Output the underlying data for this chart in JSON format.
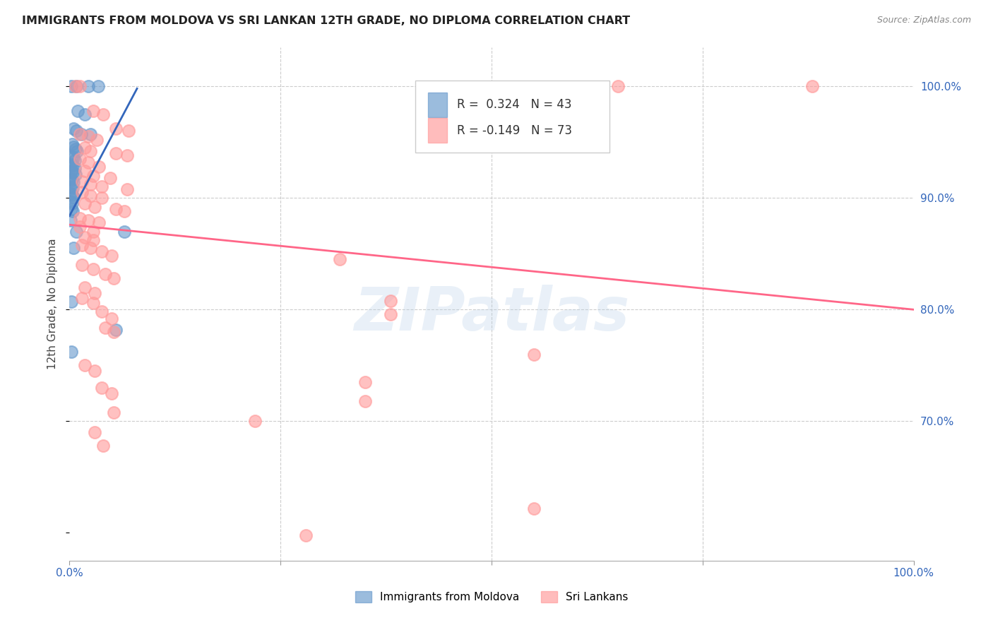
{
  "title": "IMMIGRANTS FROM MOLDOVA VS SRI LANKAN 12TH GRADE, NO DIPLOMA CORRELATION CHART",
  "source": "Source: ZipAtlas.com",
  "ylabel": "12th Grade, No Diploma",
  "y_tick_labels_right": [
    "100.0%",
    "90.0%",
    "80.0%",
    "70.0%"
  ],
  "y_tick_positions_right": [
    1.0,
    0.9,
    0.8,
    0.7
  ],
  "xlim": [
    0.0,
    1.0
  ],
  "ylim": [
    0.575,
    1.035
  ],
  "legend_r_blue": "0.324",
  "legend_n_blue": "43",
  "legend_r_pink": "-0.149",
  "legend_n_pink": "73",
  "blue_color": "#6699CC",
  "pink_color": "#FF9999",
  "blue_line_color": "#3366BB",
  "pink_line_color": "#FF6688",
  "watermark": "ZIPatlas",
  "blue_points": [
    [
      0.002,
      1.0
    ],
    [
      0.008,
      1.0
    ],
    [
      0.022,
      1.0
    ],
    [
      0.034,
      1.0
    ],
    [
      0.01,
      0.978
    ],
    [
      0.018,
      0.975
    ],
    [
      0.005,
      0.962
    ],
    [
      0.008,
      0.96
    ],
    [
      0.014,
      0.957
    ],
    [
      0.025,
      0.957
    ],
    [
      0.003,
      0.948
    ],
    [
      0.005,
      0.946
    ],
    [
      0.007,
      0.944
    ],
    [
      0.009,
      0.942
    ],
    [
      0.003,
      0.937
    ],
    [
      0.005,
      0.936
    ],
    [
      0.006,
      0.934
    ],
    [
      0.002,
      0.93
    ],
    [
      0.004,
      0.929
    ],
    [
      0.006,
      0.927
    ],
    [
      0.002,
      0.924
    ],
    [
      0.004,
      0.923
    ],
    [
      0.007,
      0.921
    ],
    [
      0.002,
      0.917
    ],
    [
      0.003,
      0.916
    ],
    [
      0.005,
      0.914
    ],
    [
      0.002,
      0.91
    ],
    [
      0.004,
      0.909
    ],
    [
      0.001,
      0.904
    ],
    [
      0.003,
      0.903
    ],
    [
      0.005,
      0.901
    ],
    [
      0.001,
      0.897
    ],
    [
      0.003,
      0.895
    ],
    [
      0.002,
      0.89
    ],
    [
      0.004,
      0.888
    ],
    [
      0.001,
      0.88
    ],
    [
      0.008,
      0.87
    ],
    [
      0.065,
      0.87
    ],
    [
      0.005,
      0.855
    ],
    [
      0.002,
      0.807
    ],
    [
      0.055,
      0.782
    ],
    [
      0.002,
      0.762
    ]
  ],
  "pink_points": [
    [
      0.007,
      1.0
    ],
    [
      0.012,
      1.0
    ],
    [
      0.65,
      1.0
    ],
    [
      0.88,
      1.0
    ],
    [
      0.028,
      0.978
    ],
    [
      0.04,
      0.975
    ],
    [
      0.055,
      0.962
    ],
    [
      0.07,
      0.96
    ],
    [
      0.012,
      0.957
    ],
    [
      0.022,
      0.955
    ],
    [
      0.032,
      0.952
    ],
    [
      0.018,
      0.945
    ],
    [
      0.025,
      0.942
    ],
    [
      0.055,
      0.94
    ],
    [
      0.068,
      0.938
    ],
    [
      0.012,
      0.935
    ],
    [
      0.022,
      0.932
    ],
    [
      0.035,
      0.928
    ],
    [
      0.018,
      0.924
    ],
    [
      0.028,
      0.92
    ],
    [
      0.048,
      0.918
    ],
    [
      0.015,
      0.915
    ],
    [
      0.025,
      0.912
    ],
    [
      0.038,
      0.91
    ],
    [
      0.068,
      0.908
    ],
    [
      0.015,
      0.905
    ],
    [
      0.025,
      0.902
    ],
    [
      0.038,
      0.9
    ],
    [
      0.018,
      0.895
    ],
    [
      0.03,
      0.892
    ],
    [
      0.055,
      0.89
    ],
    [
      0.065,
      0.888
    ],
    [
      0.012,
      0.882
    ],
    [
      0.022,
      0.88
    ],
    [
      0.035,
      0.878
    ],
    [
      0.012,
      0.874
    ],
    [
      0.028,
      0.87
    ],
    [
      0.018,
      0.865
    ],
    [
      0.028,
      0.862
    ],
    [
      0.015,
      0.858
    ],
    [
      0.025,
      0.855
    ],
    [
      0.038,
      0.852
    ],
    [
      0.05,
      0.848
    ],
    [
      0.32,
      0.845
    ],
    [
      0.015,
      0.84
    ],
    [
      0.028,
      0.836
    ],
    [
      0.042,
      0.832
    ],
    [
      0.052,
      0.828
    ],
    [
      0.018,
      0.82
    ],
    [
      0.03,
      0.815
    ],
    [
      0.015,
      0.81
    ],
    [
      0.028,
      0.806
    ],
    [
      0.038,
      0.798
    ],
    [
      0.05,
      0.792
    ],
    [
      0.042,
      0.784
    ],
    [
      0.052,
      0.78
    ],
    [
      0.38,
      0.808
    ],
    [
      0.38,
      0.796
    ],
    [
      0.55,
      0.76
    ],
    [
      0.018,
      0.75
    ],
    [
      0.03,
      0.745
    ],
    [
      0.038,
      0.73
    ],
    [
      0.05,
      0.725
    ],
    [
      0.052,
      0.708
    ],
    [
      0.22,
      0.7
    ],
    [
      0.03,
      0.69
    ],
    [
      0.04,
      0.678
    ],
    [
      0.35,
      0.735
    ],
    [
      0.35,
      0.718
    ],
    [
      0.55,
      0.622
    ],
    [
      0.28,
      0.598
    ]
  ],
  "blue_trendline": [
    [
      0.0,
      0.884
    ],
    [
      0.08,
      0.998
    ]
  ],
  "pink_trendline": [
    [
      0.0,
      0.876
    ],
    [
      1.0,
      0.8
    ]
  ]
}
